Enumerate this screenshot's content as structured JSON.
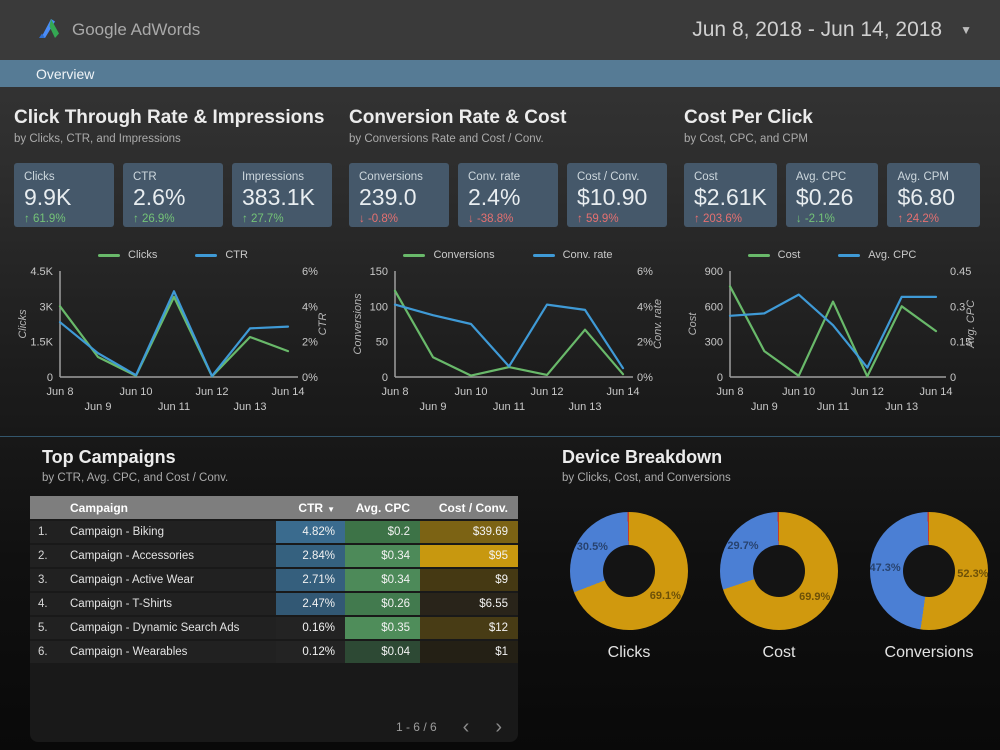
{
  "header": {
    "brand": "Google AdWords",
    "date_range": "Jun 8, 2018 - Jun 14, 2018",
    "caret": "▼"
  },
  "tabbar": {
    "active_tab": "Overview"
  },
  "sections": [
    {
      "title": "Click Through Rate & Impressions",
      "subtitle": "by Clicks, CTR, and Impressions",
      "cards": [
        {
          "label": "Clicks",
          "value": "9.9K",
          "arrow": "↑",
          "delta": "61.9%",
          "sentiment": "good"
        },
        {
          "label": "CTR",
          "value": "2.6%",
          "arrow": "↑",
          "delta": "26.9%",
          "sentiment": "good"
        },
        {
          "label": "Impressions",
          "value": "383.1K",
          "arrow": "↑",
          "delta": "27.7%",
          "sentiment": "good"
        }
      ]
    },
    {
      "title": "Conversion Rate & Cost",
      "subtitle": "by Conversions Rate and Cost / Conv.",
      "cards": [
        {
          "label": "Conversions",
          "value": "239.0",
          "arrow": "↓",
          "delta": "-0.8%",
          "sentiment": "bad"
        },
        {
          "label": "Conv. rate",
          "value": "2.4%",
          "arrow": "↓",
          "delta": "-38.8%",
          "sentiment": "bad"
        },
        {
          "label": "Cost / Conv.",
          "value": "$10.90",
          "arrow": "↑",
          "delta": "59.9%",
          "sentiment": "bad"
        }
      ]
    },
    {
      "title": "Cost Per Click",
      "subtitle": "by Cost, CPC, and CPM",
      "cards": [
        {
          "label": "Cost",
          "value": "$2.61K",
          "arrow": "↑",
          "delta": "203.6%",
          "sentiment": "bad"
        },
        {
          "label": "Avg. CPC",
          "value": "$0.26",
          "arrow": "↓",
          "delta": "-2.1%",
          "sentiment": "good"
        },
        {
          "label": "Avg. CPM",
          "value": "$6.80",
          "arrow": "↑",
          "delta": "24.2%",
          "sentiment": "bad"
        }
      ]
    }
  ],
  "chart_data": [
    {
      "type": "line",
      "x": [
        "Jun 8",
        "Jun 9",
        "Jun 10",
        "Jun 11",
        "Jun 12",
        "Jun 13",
        "Jun 14"
      ],
      "series": [
        {
          "name": "Clicks",
          "color": "#69b96a",
          "axis": "left",
          "values": [
            3000,
            850,
            50,
            3400,
            30,
            1700,
            1100
          ]
        },
        {
          "name": "CTR",
          "color": "#3f9ad6",
          "axis": "right",
          "values": [
            3.1,
            1.35,
            0.1,
            4.85,
            0.05,
            2.75,
            2.85
          ]
        }
      ],
      "left_axis": {
        "title": "Clicks",
        "max": 4500,
        "ticks": [
          "0",
          "1.5K",
          "3K",
          "4.5K"
        ]
      },
      "right_axis": {
        "title": "CTR",
        "max": 6,
        "ticks": [
          "0%",
          "2%",
          "4%",
          "6%"
        ]
      }
    },
    {
      "type": "line",
      "x": [
        "Jun 8",
        "Jun 9",
        "Jun 10",
        "Jun 11",
        "Jun 12",
        "Jun 13",
        "Jun 14"
      ],
      "series": [
        {
          "name": "Conversions",
          "color": "#69b96a",
          "axis": "left",
          "values": [
            122,
            28,
            2,
            14,
            3,
            67,
            4
          ]
        },
        {
          "name": "Conv. rate",
          "color": "#3f9ad6",
          "axis": "right",
          "values": [
            4.1,
            3.5,
            3.0,
            0.6,
            4.1,
            3.8,
            0.5
          ]
        }
      ],
      "left_axis": {
        "title": "Conversions",
        "max": 150,
        "ticks": [
          "0",
          "50",
          "100",
          "150"
        ]
      },
      "right_axis": {
        "title": "Conv. rate",
        "max": 6,
        "ticks": [
          "0%",
          "2%",
          "4%",
          "6%"
        ]
      }
    },
    {
      "type": "line",
      "x": [
        "Jun 8",
        "Jun 9",
        "Jun 10",
        "Jun 11",
        "Jun 12",
        "Jun 13",
        "Jun 14"
      ],
      "series": [
        {
          "name": "Cost",
          "color": "#69b96a",
          "axis": "left",
          "values": [
            770,
            220,
            10,
            640,
            5,
            600,
            390
          ]
        },
        {
          "name": "Avg. CPC",
          "color": "#3f9ad6",
          "axis": "right",
          "values": [
            0.26,
            0.27,
            0.35,
            0.22,
            0.04,
            0.34,
            0.34
          ]
        }
      ],
      "left_axis": {
        "title": "Cost",
        "max": 900,
        "ticks": [
          "0",
          "300",
          "600",
          "900"
        ]
      },
      "right_axis": {
        "title": "Avg. CPC",
        "max": 0.45,
        "ticks": [
          "0",
          "0.15",
          "0.3",
          "0.45"
        ]
      }
    }
  ],
  "table": {
    "title": "Top Campaigns",
    "subtitle": "by CTR, Avg. CPC, and Cost / Conv.",
    "columns": [
      "Campaign",
      "CTR",
      "Avg. CPC",
      "Cost / Conv."
    ],
    "sort_caret": "▼",
    "rows": [
      {
        "rank": "1.",
        "campaign": "Campaign - Biking",
        "ctr": "4.82%",
        "cpc": "$0.2",
        "cost": "$39.69",
        "ctr_bg": "#3a6b8e",
        "cpc_bg": "#3d7347",
        "cost_bg": "#7c6314"
      },
      {
        "rank": "2.",
        "campaign": "Campaign - Accessories",
        "ctr": "2.84%",
        "cpc": "$0.34",
        "cost": "$95",
        "ctr_bg": "#35617f",
        "cpc_bg": "#4d8a59",
        "cost_bg": "#c8980f"
      },
      {
        "rank": "3.",
        "campaign": "Campaign - Active Wear",
        "ctr": "2.71%",
        "cpc": "$0.34",
        "cost": "$9",
        "ctr_bg": "#355f7d",
        "cpc_bg": "#4d8a59",
        "cost_bg": "#453913"
      },
      {
        "rank": "4.",
        "campaign": "Campaign - T-Shirts",
        "ctr": "2.47%",
        "cpc": "$0.26",
        "cost": "$6.55",
        "ctr_bg": "#325874",
        "cpc_bg": "#427a4e",
        "cost_bg": "#29241a"
      },
      {
        "rank": "5.",
        "campaign": "Campaign - Dynamic Search Ads",
        "ctr": "0.16%",
        "cpc": "$0.35",
        "cost": "$12",
        "ctr_bg": "#232323",
        "cpc_bg": "#4f8d5a",
        "cost_bg": "#483c15"
      },
      {
        "rank": "6.",
        "campaign": "Campaign - Wearables",
        "ctr": "0.12%",
        "cpc": "$0.04",
        "cost": "$1",
        "ctr_bg": "#232323",
        "cpc_bg": "#2d4934",
        "cost_bg": "#242015"
      }
    ],
    "pagination": "1 - 6 / 6",
    "prev_icon": "‹",
    "next_icon": "›"
  },
  "devices": {
    "title": "Device Breakdown",
    "subtitle": "by Clicks, Cost, and Conversions",
    "items": [
      {
        "label": "Clicks",
        "slices": [
          {
            "value": 69.1,
            "color": "#d0990e",
            "label": "69.1%"
          },
          {
            "value": 30.5,
            "color": "#4b7fd4",
            "label": "30.5%"
          },
          {
            "value": 0.4,
            "color": "#c63d26",
            "label": ""
          }
        ]
      },
      {
        "label": "Cost",
        "slices": [
          {
            "value": 69.9,
            "color": "#d0990e",
            "label": "69.9%"
          },
          {
            "value": 29.7,
            "color": "#4b7fd4",
            "label": "29.7%"
          },
          {
            "value": 0.4,
            "color": "#c63d26",
            "label": ""
          }
        ]
      },
      {
        "label": "Conversions",
        "slices": [
          {
            "value": 52.3,
            "color": "#d0990e",
            "label": "52.3%"
          },
          {
            "value": 47.3,
            "color": "#4b7fd4",
            "label": "47.3%"
          },
          {
            "value": 0.4,
            "color": "#c63d26",
            "label": ""
          }
        ]
      }
    ]
  }
}
